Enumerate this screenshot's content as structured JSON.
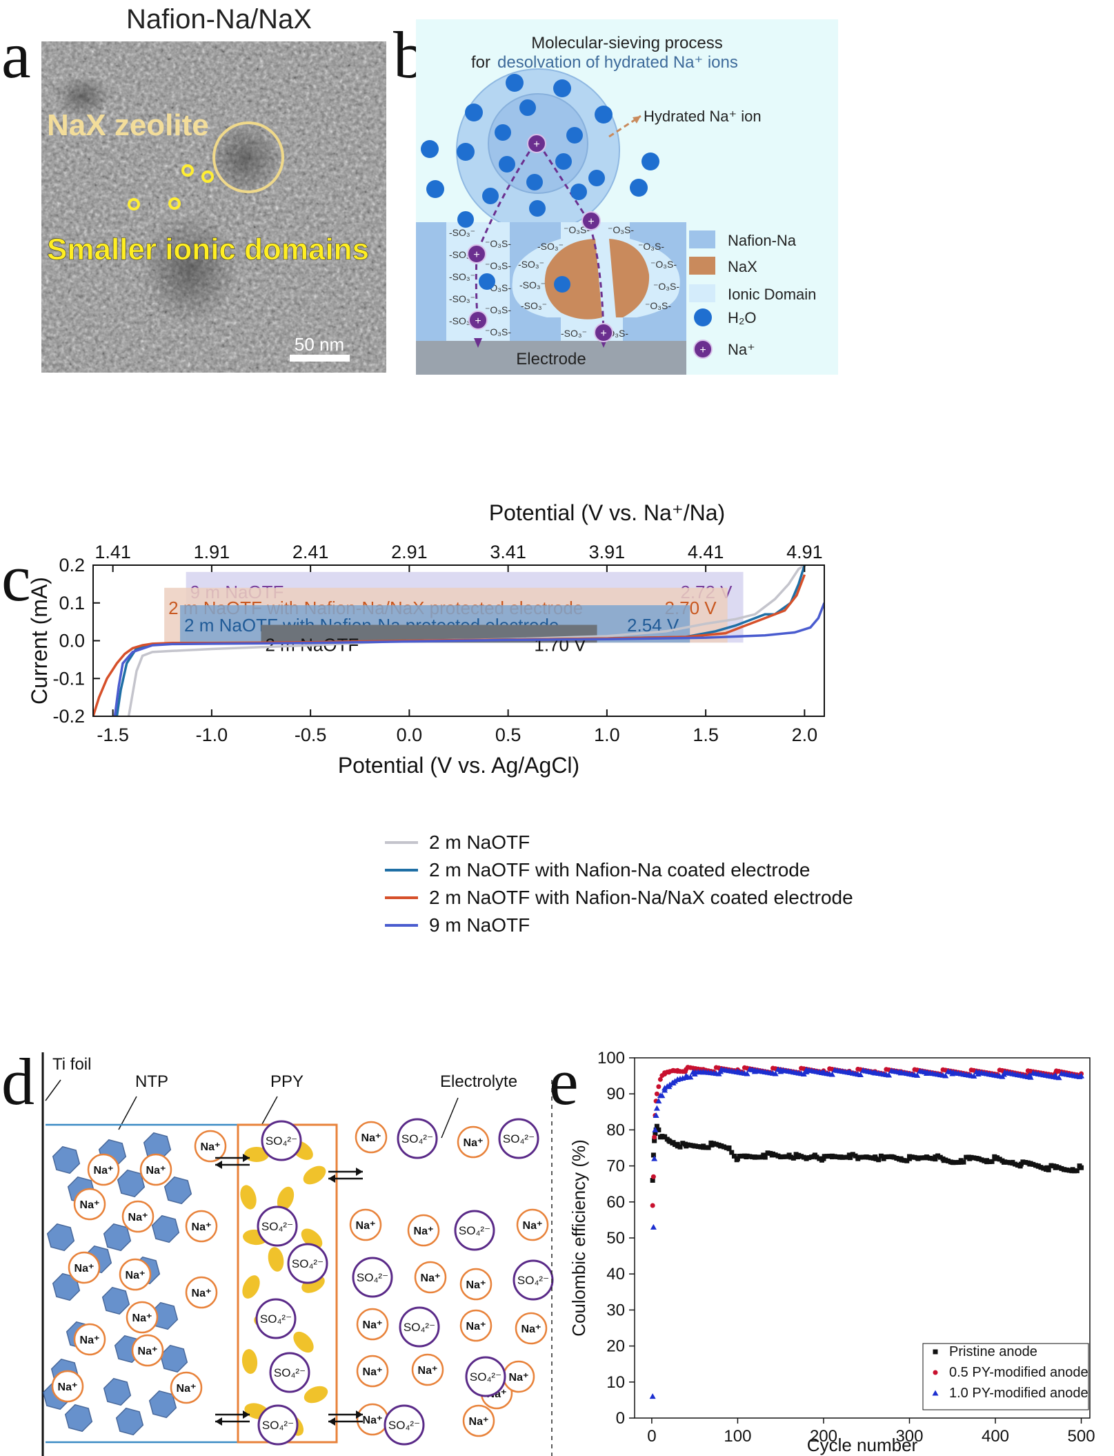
{
  "panels": {
    "a": {
      "letter": "a",
      "title": "Nafion-Na/NaX",
      "label_zeolite": "NaX zeolite",
      "label_domains": "Smaller ionic domains",
      "scale_bar": "50 nm"
    },
    "b": {
      "letter": "b",
      "title_line1": "Molecular-sieving process",
      "title_line2_prefix": "for",
      "title_line2_highlight": "desolvation of hydrated Na⁺ ions",
      "hydrated_label": "Hydrated Na⁺ ion",
      "electrode_label": "Electrode",
      "sulfonate_left": "-SO₃⁻",
      "sulfonate_right": "⁻O₃S-",
      "legend": [
        "Nafion-Na",
        "NaX",
        "Ionic Domain",
        "H₂O",
        "Na⁺"
      ],
      "colors": {
        "background": "#e6fafb",
        "nafion": "#9ec3ea",
        "nax": "#c98a5c",
        "ionic": "#d4ecfb",
        "electrode": "#9aa3ad",
        "water": "#1f6fd0",
        "sodium": "#6b2f8f"
      }
    },
    "c": {
      "letter": "c"
    },
    "d": {
      "letter": "d",
      "labels": {
        "ti_foil": "Ti foil",
        "ntp": "NTP",
        "ppy": "PPY",
        "electrolyte": "Electrolyte"
      },
      "na": "Na⁺",
      "so4": "SO₄²⁻",
      "colors": {
        "ntp": "#4d7ec4",
        "ppy_box": "#e8823a",
        "ppy_grain": "#f0c22b",
        "na": "#e8823a",
        "so4": "#5a2a88"
      }
    },
    "e": {
      "letter": "e"
    }
  },
  "chart_data": [
    {
      "id": "c",
      "type": "line",
      "xlabel": "Potential (V vs. Ag/AgCl)",
      "x2label": "Potential (V vs. Na⁺/Na)",
      "ylabel": "Current (mA)",
      "xlim": [
        -1.6,
        2.1
      ],
      "ylim": [
        -0.2,
        0.2
      ],
      "xticks": [
        -1.5,
        -1.0,
        -0.5,
        0.0,
        0.5,
        1.0,
        1.5,
        2.0
      ],
      "xtick_labels": [
        "-1.5",
        "-1.0",
        "-0.5",
        "0.0",
        "0.5",
        "1.0",
        "1.5",
        "2.0"
      ],
      "yticks": [
        -0.2,
        -0.1,
        0.0,
        0.1,
        0.2
      ],
      "ytick_labels": [
        "-0.2",
        "-0.1",
        "0.0",
        "0.1",
        "0.2"
      ],
      "x2ticks": [
        1.41,
        1.91,
        2.41,
        2.91,
        3.41,
        3.91,
        4.41,
        4.91
      ],
      "x2tick_labels": [
        "1.41",
        "1.91",
        "2.41",
        "2.91",
        "3.41",
        "3.91",
        "4.41",
        "4.91"
      ],
      "x2_offset": 2.91,
      "legend_position": "bottom-center",
      "windows": [
        {
          "label": "9 m NaOTF",
          "value": "2.72 V",
          "x": [
            -1.13,
            1.69
          ],
          "ytop": 0.182,
          "fill": "#d6d4f0",
          "color": "#7a3f9c"
        },
        {
          "label": "2 m NaOTF with Nafion-Na/NaX protected electrode",
          "value": "2.70 V",
          "x": [
            -1.24,
            1.61
          ],
          "ytop": 0.14,
          "fill": "#eccfc0",
          "color": "#c8571f"
        },
        {
          "label": "2 m NaOTF with Nafion-Na protected electrode",
          "value": "2.54 V",
          "x": [
            -1.16,
            1.42
          ],
          "ytop": 0.094,
          "fill": "#7fa6cf",
          "color": "#1f5a96"
        },
        {
          "label": "2 m NaOTF",
          "value": "1.70 V",
          "x": [
            -0.75,
            0.95
          ],
          "ytop": 0.042,
          "fill": "#6d737a",
          "color": "#111111"
        }
      ],
      "series": [
        {
          "name": "2 m NaOTF",
          "color": "#c4c4cc",
          "x": [
            -1.42,
            -1.4,
            -1.38,
            -1.35,
            -1.3,
            -1.2,
            -1.0,
            -0.5,
            0.0,
            0.5,
            1.0,
            1.3,
            1.5,
            1.65,
            1.75,
            1.85,
            1.92,
            1.97,
            2.0
          ],
          "y": [
            -0.2,
            -0.14,
            -0.08,
            -0.04,
            -0.03,
            -0.027,
            -0.022,
            -0.012,
            0.0,
            0.004,
            0.012,
            0.025,
            0.045,
            0.057,
            0.07,
            0.11,
            0.15,
            0.19,
            0.2
          ]
        },
        {
          "name": "2 m NaOTF with Nafion-Na coated electrode",
          "color": "#1f6fa5",
          "x": [
            -1.48,
            -1.46,
            -1.43,
            -1.38,
            -1.3,
            -1.15,
            -1.0,
            -0.5,
            0.0,
            0.5,
            1.0,
            1.4,
            1.55,
            1.65,
            1.75,
            1.8,
            1.85,
            1.93,
            1.97,
            2.0
          ],
          "y": [
            -0.2,
            -0.13,
            -0.06,
            -0.02,
            -0.01,
            -0.007,
            -0.007,
            -0.005,
            0.0,
            0.003,
            0.006,
            0.01,
            0.025,
            0.04,
            0.06,
            0.07,
            0.07,
            0.1,
            0.15,
            0.2
          ]
        },
        {
          "name": "2 m NaOTF with Nafion-Na/NaX coated electrode",
          "color": "#d6502a",
          "x": [
            -1.6,
            -1.57,
            -1.53,
            -1.48,
            -1.44,
            -1.4,
            -1.35,
            -1.3,
            -1.2,
            -1.0,
            -0.5,
            0.0,
            0.5,
            1.0,
            1.4,
            1.6,
            1.7,
            1.8,
            1.9,
            1.96,
            2.0
          ],
          "y": [
            -0.2,
            -0.15,
            -0.1,
            -0.06,
            -0.035,
            -0.02,
            -0.012,
            -0.008,
            -0.006,
            -0.006,
            -0.004,
            0.0,
            0.003,
            0.006,
            0.01,
            0.02,
            0.04,
            0.06,
            0.08,
            0.12,
            0.175
          ]
        },
        {
          "name": "9 m NaOTF",
          "color": "#4a5ccf",
          "x": [
            -1.49,
            -1.47,
            -1.45,
            -1.4,
            -1.3,
            -1.2,
            -1.0,
            -0.5,
            0.0,
            0.5,
            1.0,
            1.5,
            1.8,
            1.95,
            2.03,
            2.07,
            2.1
          ],
          "y": [
            -0.2,
            -0.12,
            -0.06,
            -0.03,
            -0.012,
            -0.009,
            -0.008,
            -0.006,
            -0.002,
            0.002,
            0.004,
            0.008,
            0.014,
            0.022,
            0.035,
            0.06,
            0.1
          ]
        }
      ]
    },
    {
      "id": "e",
      "type": "scatter",
      "xlabel": "Cycle number",
      "ylabel": "Coulombic efficiency (%)",
      "xlim": [
        -20,
        510
      ],
      "ylim": [
        0,
        100
      ],
      "xticks": [
        0,
        100,
        200,
        300,
        400,
        500
      ],
      "xtick_labels": [
        "0",
        "100",
        "200",
        "300",
        "400",
        "500"
      ],
      "yticks": [
        0,
        10,
        20,
        30,
        40,
        50,
        60,
        70,
        80,
        90,
        100
      ],
      "ytick_labels": [
        "0",
        "10",
        "20",
        "30",
        "40",
        "50",
        "60",
        "70",
        "80",
        "90",
        "100"
      ],
      "legend_position": "bottom-right",
      "series": [
        {
          "name": "Pristine anode",
          "marker": "square",
          "color": "#111111",
          "x": [
            1,
            2,
            3,
            4,
            5,
            6,
            8,
            10,
            15,
            20,
            25,
            30,
            40,
            50,
            60,
            70,
            80,
            90,
            100,
            110,
            120,
            130,
            140,
            150,
            160,
            170,
            180,
            190,
            200,
            210,
            220,
            230,
            240,
            250,
            260,
            270,
            280,
            290,
            300,
            310,
            320,
            330,
            340,
            350,
            360,
            370,
            380,
            390,
            400,
            410,
            420,
            430,
            440,
            450,
            460,
            470,
            480,
            490,
            500
          ],
          "y": [
            66,
            73,
            77,
            79,
            80,
            81,
            80,
            78,
            78,
            77,
            76.5,
            76,
            75.5,
            75.5,
            75.5,
            75.8,
            75.5,
            75,
            72,
            72.5,
            72.5,
            73,
            73,
            72.5,
            73,
            72.5,
            72,
            73,
            72,
            72.5,
            72.5,
            73,
            72,
            72.5,
            72.5,
            72,
            72.5,
            72,
            72,
            72,
            72.5,
            72.5,
            71.5,
            71,
            71.5,
            72,
            72,
            71.5,
            72,
            71,
            71,
            70.5,
            70.5,
            70,
            69.5,
            69.5,
            69,
            69,
            69.5
          ]
        },
        {
          "name": "0.5 PY-modified anode",
          "marker": "circle",
          "color": "#c8102e",
          "x": [
            1,
            2,
            3,
            4,
            5,
            6,
            8,
            10,
            15,
            20,
            25,
            30,
            40,
            50,
            60,
            80,
            100,
            120,
            150,
            180,
            200,
            230,
            260,
            290,
            320,
            350,
            380,
            410,
            440,
            470,
            500
          ],
          "y": [
            59,
            67,
            78,
            84,
            88,
            90,
            92,
            94,
            95.5,
            96,
            96.5,
            96.5,
            96.8,
            96.8,
            96.8,
            96.7,
            96.7,
            96.6,
            96.5,
            96.5,
            96.4,
            96.3,
            96.2,
            96.2,
            96.1,
            96.1,
            96,
            96,
            95.8,
            95.8,
            95.6
          ]
        },
        {
          "name": "1.0 PY-modified anode",
          "marker": "triangle",
          "color": "#1c2fd0",
          "x": [
            1,
            2,
            3,
            4,
            5,
            6,
            8,
            10,
            15,
            20,
            25,
            30,
            40,
            50,
            60,
            80,
            100,
            120,
            150,
            180,
            200,
            230,
            260,
            290,
            320,
            350,
            380,
            410,
            440,
            470,
            500
          ],
          "y": [
            6,
            53,
            72,
            80,
            84,
            86,
            88,
            89.5,
            91,
            92,
            93,
            94,
            95,
            95.5,
            96,
            96.2,
            96.2,
            96.2,
            96.2,
            96.1,
            96,
            96,
            95.8,
            95.8,
            95.7,
            95.6,
            95.5,
            95.4,
            95.2,
            95.1,
            95
          ]
        }
      ]
    }
  ]
}
